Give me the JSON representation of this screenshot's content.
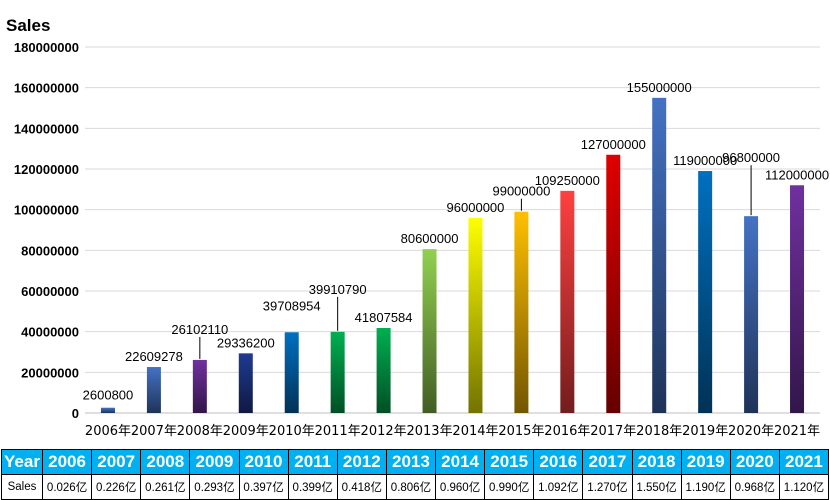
{
  "chart_data": {
    "type": "bar",
    "title": "Sales",
    "categories": [
      "2006年",
      "2007年",
      "2008年",
      "2009年",
      "2010年",
      "2011年",
      "2012年",
      "2013年",
      "2014年",
      "2015年",
      "2016年",
      "2017年",
      "2018年",
      "2019年",
      "2020年",
      "2021年"
    ],
    "values": [
      2600800,
      22609278,
      26102110,
      29336200,
      39708954,
      39910790,
      41807584,
      80600000,
      96000000,
      99000000,
      109250000,
      127000000,
      155000000,
      119000000,
      96800000,
      112000000
    ],
    "data_labels": [
      "2600800",
      "22609278",
      "26102110",
      "29336200",
      "39708954",
      "39910790",
      "41807584",
      "80600000",
      "96000000",
      "99000000",
      "109250000",
      "127000000",
      "155000000",
      "119000000",
      "96800000",
      "112000000"
    ],
    "yticks": [
      "0",
      "20000000",
      "40000000",
      "60000000",
      "80000000",
      "100000000",
      "120000000",
      "140000000",
      "160000000",
      "180000000"
    ],
    "ylim": [
      0,
      180000000
    ],
    "grid": true,
    "colors": [
      "#4472c4",
      "#4472c4",
      "#7030a0",
      "#1f3a93",
      "#0070c0",
      "#00b050",
      "#00b050",
      "#92d050",
      "#ffff00",
      "#ffc000",
      "#ff4040",
      "#e00000",
      "#4472c4",
      "#0070c0",
      "#4472c4",
      "#7030a0"
    ]
  },
  "table": {
    "header_label": "Year",
    "years": [
      "2006",
      "2007",
      "2008",
      "2009",
      "2010",
      "2011",
      "2012",
      "2013",
      "2014",
      "2015",
      "2016",
      "2017",
      "2018",
      "2019",
      "2020",
      "2021"
    ],
    "row_label": "Sales",
    "sales": [
      "0.026亿",
      "0.226亿",
      "0.261亿",
      "0.293亿",
      "0.397亿",
      "0.399亿",
      "0.418亿",
      "0.806亿",
      "0.960亿",
      "0.990亿",
      "1.092亿",
      "1.270亿",
      "1.550亿",
      "1.190亿",
      "0.968亿",
      "1.120亿"
    ]
  }
}
